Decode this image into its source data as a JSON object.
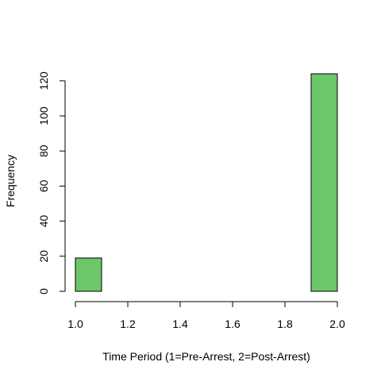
{
  "chart_data": {
    "type": "bar",
    "title": "",
    "xlabel": "Time Period (1=Pre-Arrest, 2=Post-Arrest)",
    "ylabel": "Frequency",
    "bins": [
      {
        "x0": 1.0,
        "x1": 1.1,
        "count": 19
      },
      {
        "x0": 1.1,
        "x1": 1.2,
        "count": 0
      },
      {
        "x0": 1.2,
        "x1": 1.3,
        "count": 0
      },
      {
        "x0": 1.3,
        "x1": 1.4,
        "count": 0
      },
      {
        "x0": 1.4,
        "x1": 1.5,
        "count": 0
      },
      {
        "x0": 1.5,
        "x1": 1.6,
        "count": 0
      },
      {
        "x0": 1.6,
        "x1": 1.7,
        "count": 0
      },
      {
        "x0": 1.7,
        "x1": 1.8,
        "count": 0
      },
      {
        "x0": 1.8,
        "x1": 1.9,
        "count": 0
      },
      {
        "x0": 1.9,
        "x1": 2.0,
        "count": 124
      }
    ],
    "xlim": [
      1.0,
      2.0
    ],
    "ylim": [
      0,
      124
    ],
    "x_ticks": [
      "1.0",
      "1.2",
      "1.4",
      "1.6",
      "1.8",
      "2.0"
    ],
    "y_ticks": [
      "0",
      "20",
      "40",
      "60",
      "80",
      "100",
      "120"
    ],
    "bar_color": "#6CC76A",
    "grid": false,
    "legend": "none"
  }
}
